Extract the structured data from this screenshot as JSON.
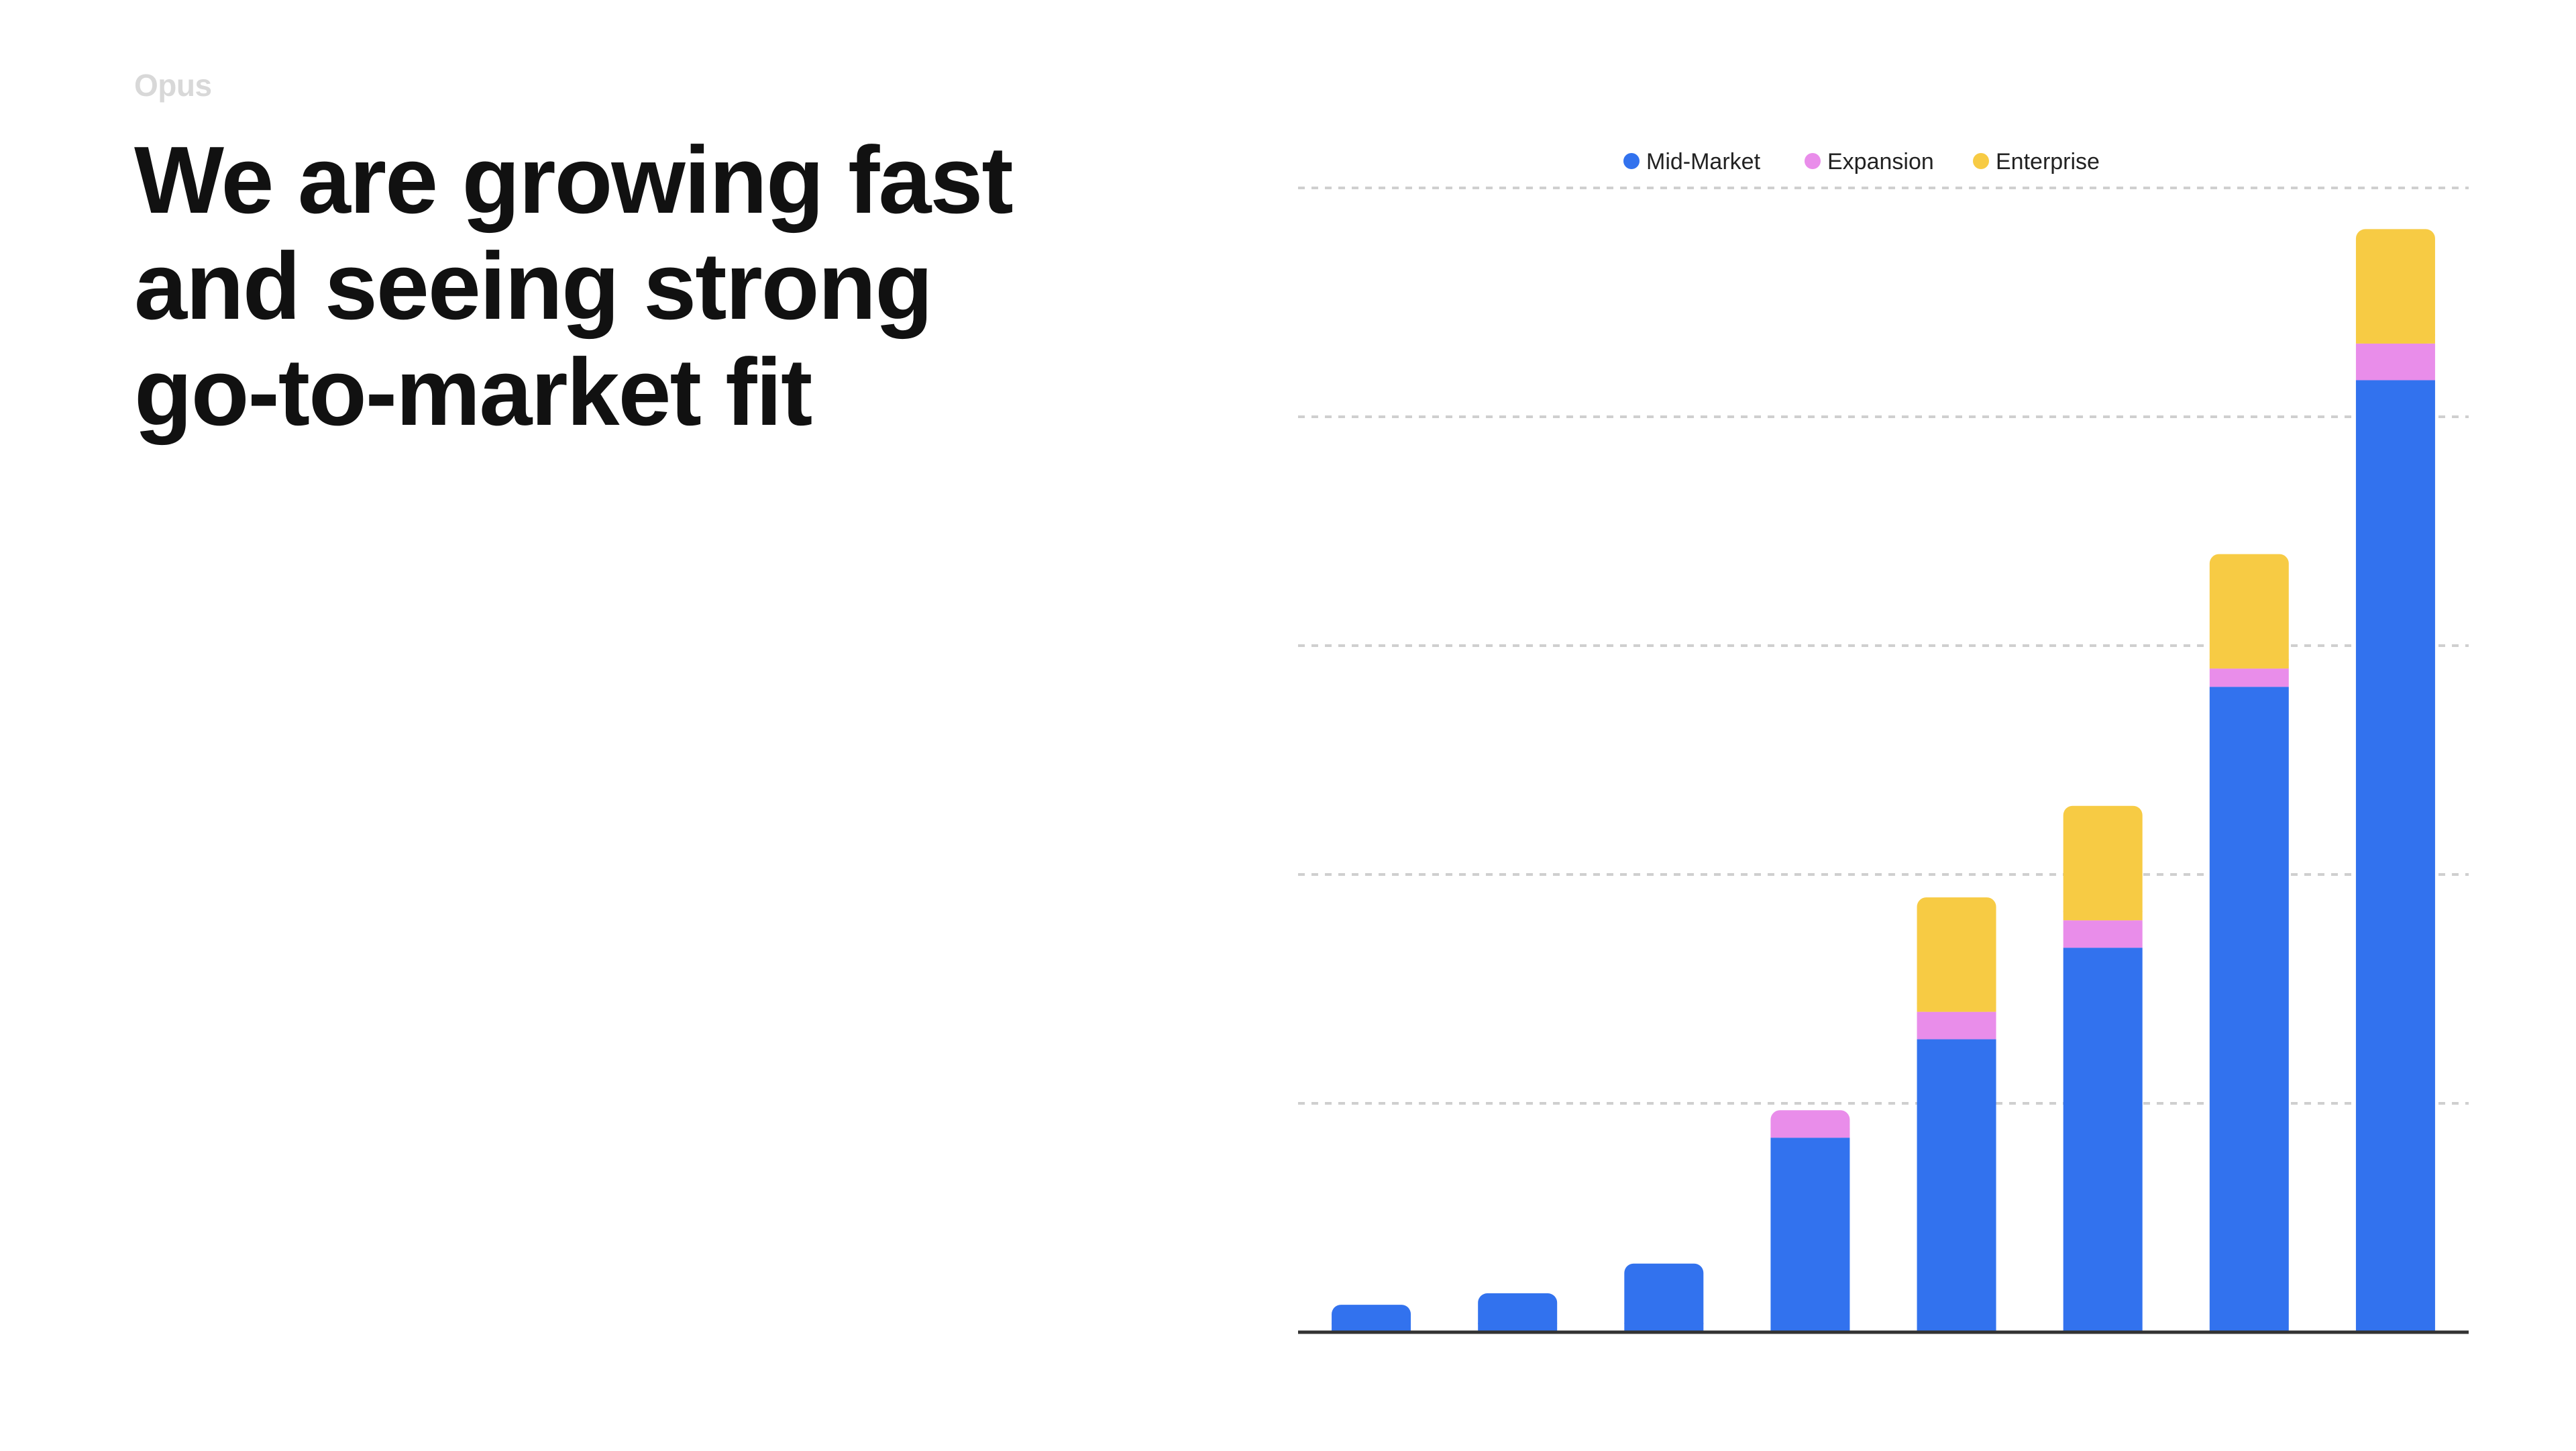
{
  "slide": {
    "brand": "Opus",
    "headline": [
      "We are growing fast",
      "and seeing strong",
      "go-to-market fit"
    ]
  },
  "chart_data": {
    "type": "bar",
    "stacked": true,
    "title": "",
    "xlabel": "",
    "ylabel": "",
    "categories": [
      "",
      "",
      "",
      "",
      "",
      "",
      "",
      ""
    ],
    "ylim": [
      0,
      5
    ],
    "grid": true,
    "legend_position": "top-center",
    "series": [
      {
        "name": "Mid-Market",
        "color": "#3272EE",
        "values": [
          0.12,
          0.17,
          0.3,
          0.85,
          1.28,
          1.68,
          2.82,
          4.16
        ]
      },
      {
        "name": "Expansion",
        "color": "#E98DEA",
        "values": [
          0,
          0,
          0,
          0.12,
          0.12,
          0.12,
          0.08,
          0.16
        ]
      },
      {
        "name": "Enterprise",
        "color": "#F7CB44",
        "values": [
          0,
          0,
          0,
          0,
          0.5,
          0.5,
          0.5,
          0.5
        ]
      }
    ]
  }
}
